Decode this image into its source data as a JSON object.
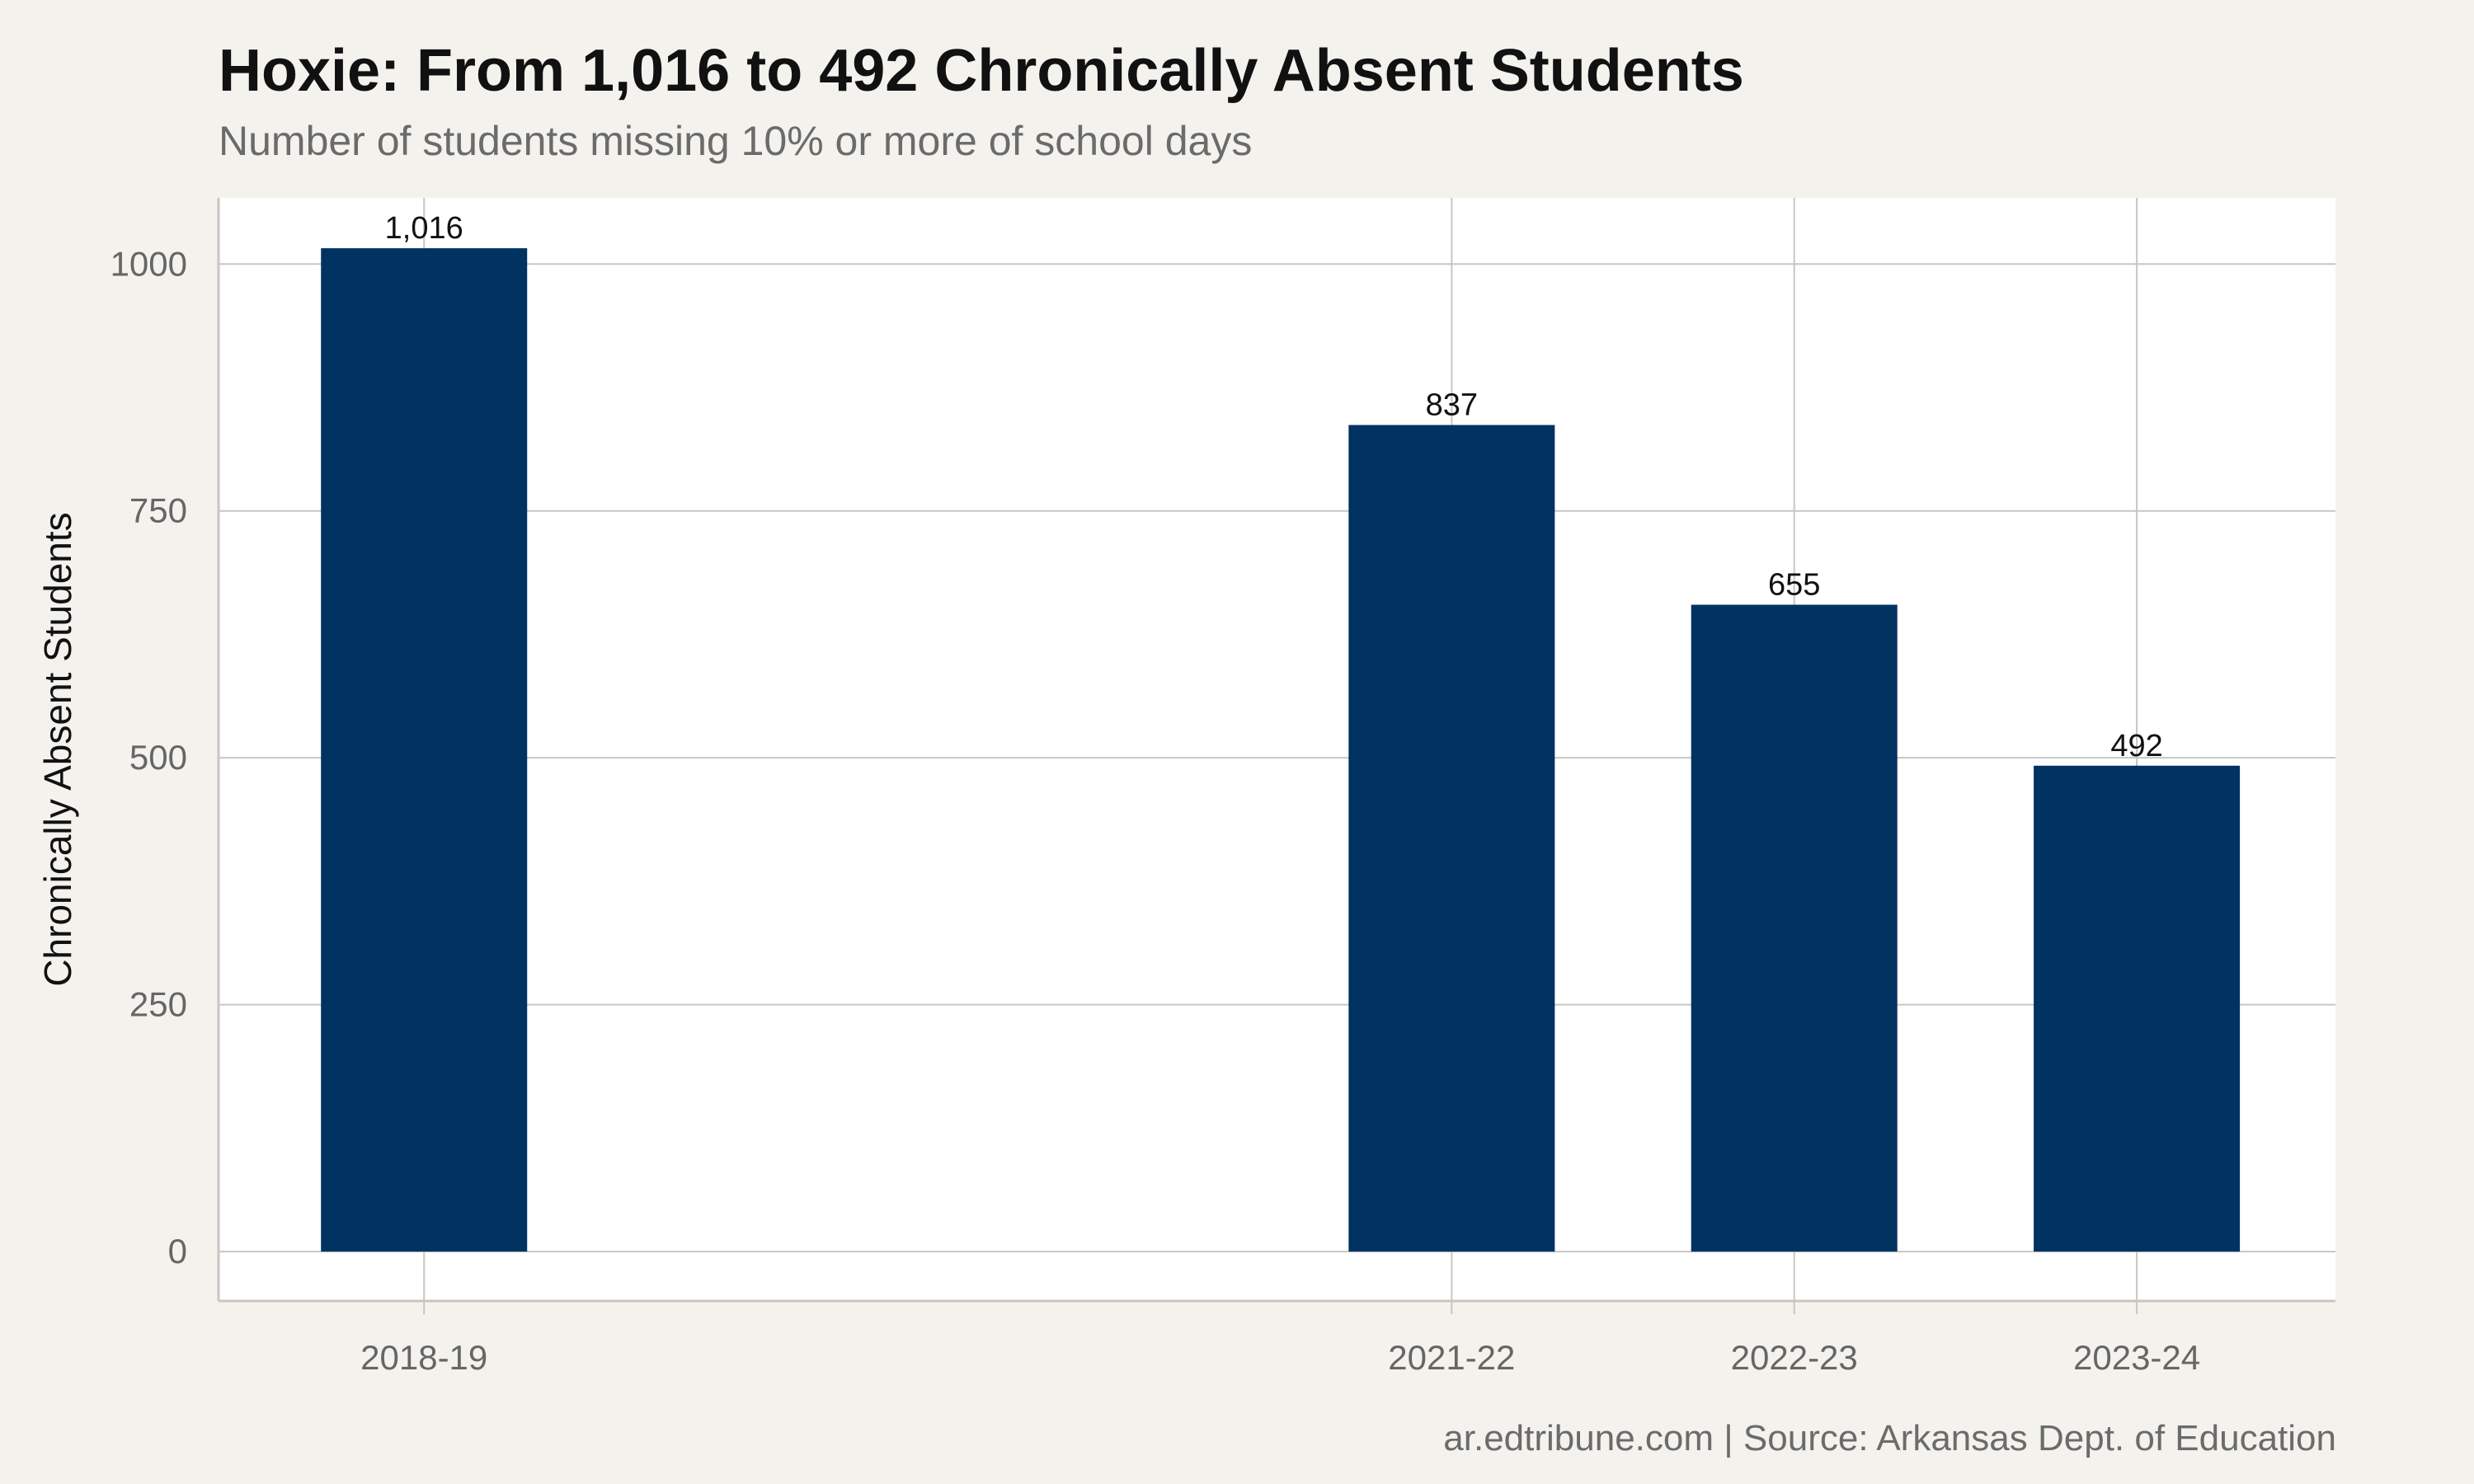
{
  "header": {
    "title": "Hoxie: From 1,016 to 492 Chronically Absent Students",
    "subtitle": "Number of students missing 10% or more of school days"
  },
  "footer": {
    "caption": "ar.edtribune.com | Source: Arkansas Dept. of Education"
  },
  "colors": {
    "bar": "#003262",
    "panel": "#ffffff",
    "background": "#f4f2ed",
    "grid": "#c8c6c0"
  },
  "chart_data": {
    "type": "bar",
    "title": "Hoxie: From 1,016 to 492 Chronically Absent Students",
    "subtitle": "Number of students missing 10% or more of school days",
    "xlabel": "",
    "ylabel": "Chronically Absent Students",
    "x_axis": "school year start (numeric spacing, gap for missing years)",
    "categories": [
      "2018-19",
      "2021-22",
      "2022-23",
      "2023-24"
    ],
    "x": [
      2018,
      2021,
      2022,
      2023
    ],
    "xlim": [
      2017.4,
      2023.58
    ],
    "values": [
      1016,
      837,
      655,
      492
    ],
    "data_labels": [
      "1,016",
      "837",
      "655",
      "492"
    ],
    "ylim": [
      -50,
      1067
    ],
    "yticks": [
      0,
      250,
      500,
      750,
      1000
    ],
    "grid": true,
    "legend": "none"
  }
}
